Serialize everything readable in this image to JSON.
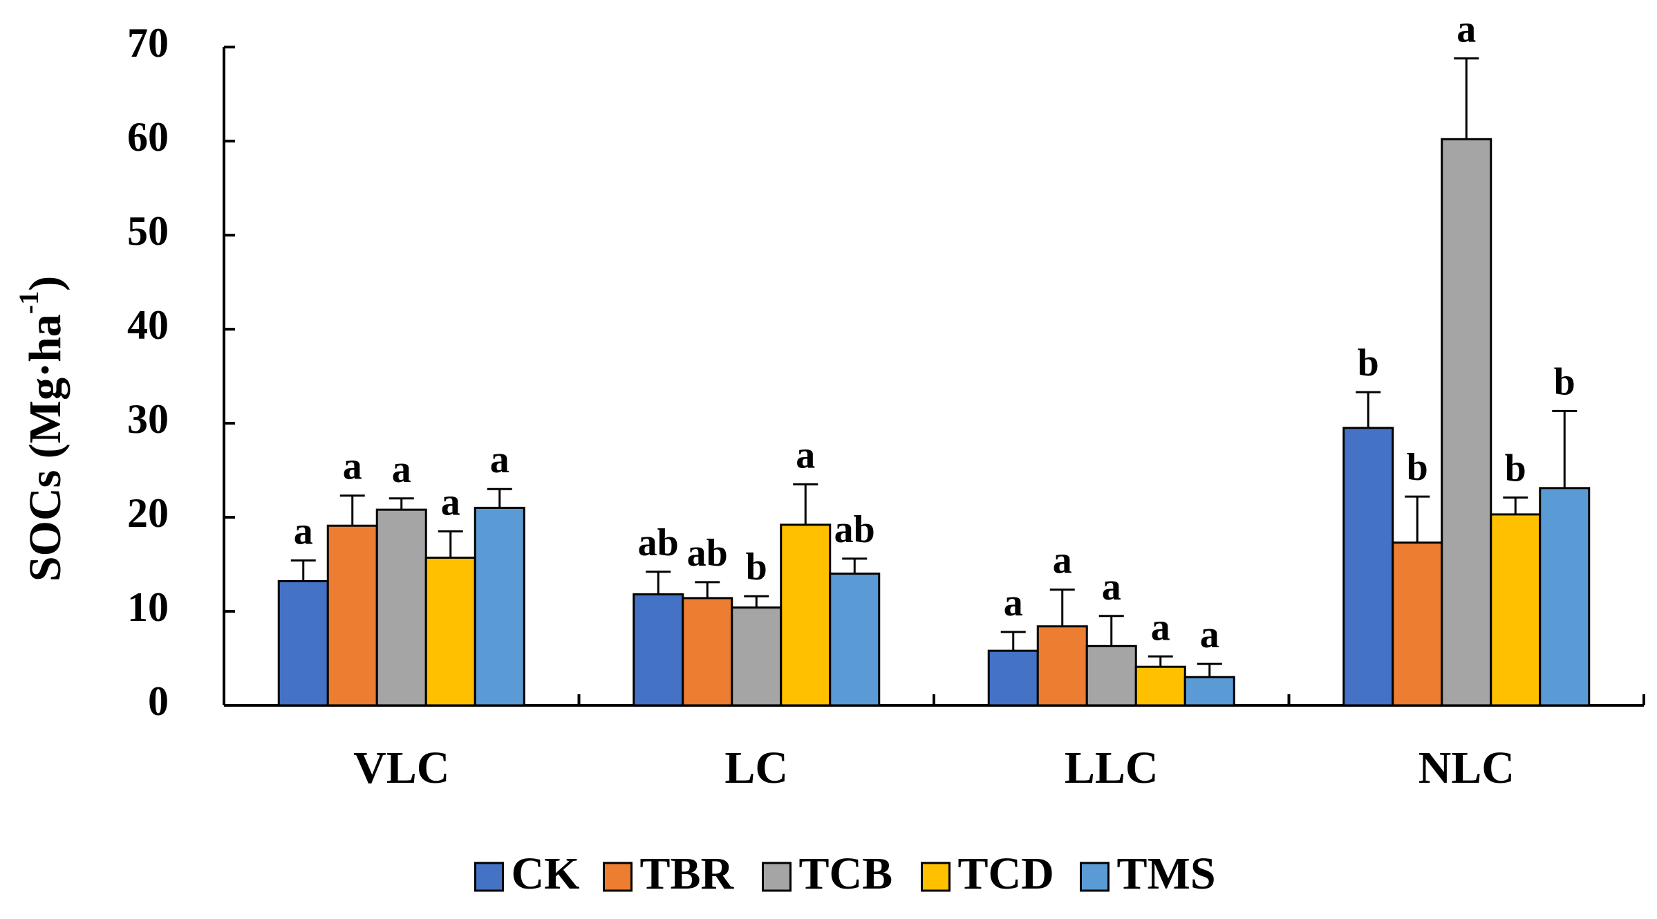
{
  "chart_data": {
    "type": "bar",
    "title": "",
    "xlabel": "",
    "ylabel": "SOCs (Mg·ha",
    "ylabel_sup": "-1",
    "ylabel_close": ")",
    "ylim": [
      0,
      70
    ],
    "yticks": [
      "0",
      "10",
      "20",
      "30",
      "40",
      "50",
      "60",
      "70"
    ],
    "grid": false,
    "legend_position": "bottom",
    "categories": [
      "VLC",
      "LC",
      "LLC",
      "NLC"
    ],
    "series": [
      {
        "name": "CK",
        "color": "#4472C4",
        "values": [
          13.2,
          11.8,
          5.8,
          29.5
        ],
        "errors": [
          2.2,
          2.4,
          2.0,
          3.8
        ],
        "labels": [
          "a",
          "ab",
          "a",
          "b"
        ]
      },
      {
        "name": "TBR",
        "color": "#ED7D31",
        "values": [
          19.1,
          11.4,
          8.4,
          17.3
        ],
        "errors": [
          3.2,
          1.7,
          3.9,
          4.9
        ],
        "labels": [
          "a",
          "ab",
          "a",
          "b"
        ]
      },
      {
        "name": "TCB",
        "color": "#A5A5A5",
        "values": [
          20.8,
          10.4,
          6.3,
          60.2
        ],
        "errors": [
          1.2,
          1.2,
          3.2,
          8.6
        ],
        "labels": [
          "a",
          "b",
          "a",
          "a"
        ]
      },
      {
        "name": "TCD",
        "color": "#FFC000",
        "values": [
          15.7,
          19.2,
          4.1,
          20.3
        ],
        "errors": [
          2.8,
          4.3,
          1.1,
          1.8
        ],
        "labels": [
          "a",
          "a",
          "a",
          "b"
        ]
      },
      {
        "name": "TMS",
        "color": "#5B9BD5",
        "values": [
          21.0,
          14.0,
          3.0,
          23.1
        ],
        "errors": [
          2.0,
          1.6,
          1.4,
          8.2
        ],
        "labels": [
          "a",
          "ab",
          "a",
          "b"
        ]
      }
    ]
  }
}
